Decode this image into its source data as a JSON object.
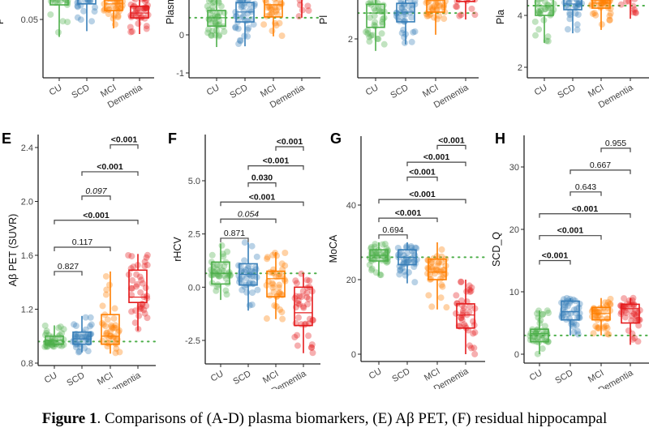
{
  "colors": {
    "CU": "#4daf4a",
    "SCD": "#377eb8",
    "MCI": "#ff7f00",
    "Dementia": "#e41a1c",
    "reference_line": "#4daf4a",
    "bracket": "#444444"
  },
  "caption": {
    "label": "Figure 1",
    "text": ". Comparisons of (A-D) plasma biomarkers, (E) Aβ PET, (F) residual hippocampal"
  },
  "chart_data": [
    {
      "type": "box",
      "panel_letter": "",
      "ylabel": "P",
      "categories": [
        "CU",
        "SCD",
        "MCI",
        "Dementia"
      ],
      "yticks": [
        "0.05"
      ],
      "ytick_values": [
        0.05
      ],
      "reference": null,
      "boxes": [
        {
          "group": "CU",
          "lo": 0.041,
          "q1": 0.0575,
          "median": 0.061,
          "q3": 0.065,
          "hi": 0.07
        },
        {
          "group": "SCD",
          "lo": 0.044,
          "q1": 0.058,
          "median": 0.062,
          "q3": 0.066,
          "hi": 0.07
        },
        {
          "group": "MCI",
          "lo": 0.0454,
          "q1": 0.0546,
          "median": 0.058,
          "q3": 0.06,
          "hi": 0.066
        },
        {
          "group": "Dementia",
          "lo": 0.0425,
          "q1": 0.0508,
          "median": 0.0533,
          "q3": 0.0567,
          "hi": 0.062
        }
      ],
      "comparisons": []
    },
    {
      "type": "box",
      "panel_letter": "",
      "ylabel": "Plasm",
      "categories": [
        "CU",
        "SCD",
        "MCI",
        "Dementia"
      ],
      "yticks": [
        "-1",
        "0"
      ],
      "ytick_values": [
        -1,
        0
      ],
      "reference": 0.45,
      "boxes": [
        {
          "group": "CU",
          "lo": -0.32,
          "q1": 0.23,
          "median": 0.45,
          "q3": 0.64,
          "hi": 1.0
        },
        {
          "group": "SCD",
          "lo": -0.3,
          "q1": 0.34,
          "median": 0.6,
          "q3": 0.85,
          "hi": 1.2
        },
        {
          "group": "MCI",
          "lo": -0.04,
          "q1": 0.47,
          "median": 0.79,
          "q3": 1.1,
          "hi": 1.5
        },
        {
          "group": "Dementia",
          "lo": 0.45,
          "q1": 1.0,
          "median": 1.3,
          "q3": 1.6,
          "hi": 2.0
        }
      ],
      "comparisons": []
    },
    {
      "type": "box",
      "panel_letter": "",
      "ylabel": "Pl",
      "categories": [
        "CU",
        "SCD",
        "MCI",
        "Dementia"
      ],
      "yticks": [
        "2"
      ],
      "ytick_values": [
        2
      ],
      "reference": 2.56,
      "boxes": [
        {
          "group": "CU",
          "lo": 1.74,
          "q1": 2.25,
          "median": 2.56,
          "q3": 2.75,
          "hi": 3.1
        },
        {
          "group": "SCD",
          "lo": 1.88,
          "q1": 2.37,
          "median": 2.58,
          "q3": 2.77,
          "hi": 3.1
        },
        {
          "group": "MCI",
          "lo": 2.09,
          "q1": 2.58,
          "median": 2.83,
          "q3": 2.9,
          "hi": 3.2
        },
        {
          "group": "Dementia",
          "lo": 2.42,
          "q1": 2.81,
          "median": 3.0,
          "q3": 3.2,
          "hi": 3.4
        }
      ],
      "comparisons": []
    },
    {
      "type": "box",
      "panel_letter": "",
      "ylabel": "Pla",
      "categories": [
        "CU",
        "SCD",
        "MCI",
        "Dementia"
      ],
      "yticks": [
        "2",
        "4"
      ],
      "ytick_values": [
        2,
        4
      ],
      "reference": 4.375,
      "boxes": [
        {
          "group": "CU",
          "lo": 2.94,
          "q1": 4.0,
          "median": 4.37,
          "q3": 4.7,
          "hi": 5.0
        },
        {
          "group": "SCD",
          "lo": 3.31,
          "q1": 4.22,
          "median": 4.44,
          "q3": 4.7,
          "hi": 5.0
        },
        {
          "group": "MCI",
          "lo": 3.44,
          "q1": 4.28,
          "median": 4.47,
          "q3": 4.6,
          "hi": 5.0
        },
        {
          "group": "Dementia",
          "lo": 3.87,
          "q1": 4.7,
          "median": 4.9,
          "q3": 5.1,
          "hi": 5.3
        }
      ],
      "comparisons": []
    },
    {
      "type": "box",
      "panel_letter": "E",
      "ylabel": "Aβ PET (SUVR)",
      "categories": [
        "CU",
        "SCD",
        "MCI",
        "Dementia"
      ],
      "yticks": [
        "0.8",
        "1.2",
        "1.6",
        "2.0",
        "2.4"
      ],
      "ytick_values": [
        0.8,
        1.2,
        1.6,
        2.0,
        2.4
      ],
      "ylim": [
        0.78,
        2.5
      ],
      "reference": 0.96,
      "boxes": [
        {
          "group": "CU",
          "lo": 0.92,
          "q1": 0.94,
          "median": 0.97,
          "q3": 1.0,
          "hi": 1.08
        },
        {
          "group": "SCD",
          "lo": 0.88,
          "q1": 0.94,
          "median": 0.98,
          "q3": 1.03,
          "hi": 1.15
        },
        {
          "group": "MCI",
          "lo": 0.87,
          "q1": 0.94,
          "median": 1.0,
          "q3": 1.16,
          "hi": 1.48
        },
        {
          "group": "Dementia",
          "lo": 1.04,
          "q1": 1.25,
          "median": 1.29,
          "q3": 1.49,
          "hi": 1.61
        }
      ],
      "comparisons": [
        {
          "from": "MCI",
          "to": "Dementia",
          "label": "<0.001",
          "style": "bold",
          "y": 2.42
        },
        {
          "from": "SCD",
          "to": "Dementia",
          "label": "<0.001",
          "style": "bold",
          "y": 2.22
        },
        {
          "from": "SCD",
          "to": "MCI",
          "label": "0.097",
          "style": "italic",
          "y": 2.04
        },
        {
          "from": "CU",
          "to": "Dementia",
          "label": "<0.001",
          "style": "bold",
          "y": 1.86
        },
        {
          "from": "CU",
          "to": "MCI",
          "label": "0.117",
          "style": "normal",
          "y": 1.66
        },
        {
          "from": "CU",
          "to": "SCD",
          "label": "0.827",
          "style": "normal",
          "y": 1.48
        }
      ]
    },
    {
      "type": "box",
      "panel_letter": "F",
      "ylabel": "rHCV",
      "categories": [
        "CU",
        "SCD",
        "MCI",
        "Dementia"
      ],
      "yticks": [
        "-2.5",
        "0.0",
        "2.5",
        "5.0"
      ],
      "ytick_values": [
        -2.5,
        0,
        2.5,
        5
      ],
      "ylim": [
        -3.6,
        7.2
      ],
      "reference": 0.65,
      "boxes": [
        {
          "group": "CU",
          "lo": -0.6,
          "q1": 0.15,
          "median": 0.65,
          "q3": 1.18,
          "hi": 2.05
        },
        {
          "group": "SCD",
          "lo": -1.1,
          "q1": 0.1,
          "median": 0.6,
          "q3": 1.1,
          "hi": 2.1
        },
        {
          "group": "MCI",
          "lo": -1.5,
          "q1": -0.45,
          "median": 0.4,
          "q3": 0.75,
          "hi": 1.65
        },
        {
          "group": "Dementia",
          "lo": -3.1,
          "q1": -1.8,
          "median": -1.2,
          "q3": 0.0,
          "hi": 0.65
        }
      ],
      "comparisons": [
        {
          "from": "MCI",
          "to": "Dementia",
          "label": "<0.001",
          "style": "bold",
          "y": 6.6
        },
        {
          "from": "SCD",
          "to": "Dementia",
          "label": "<0.001",
          "style": "bold",
          "y": 5.7
        },
        {
          "from": "SCD",
          "to": "MCI",
          "label": "0.030",
          "style": "bold",
          "y": 4.9
        },
        {
          "from": "CU",
          "to": "Dementia",
          "label": "<0.001",
          "style": "bold",
          "y": 4.0
        },
        {
          "from": "CU",
          "to": "MCI",
          "label": "0.054",
          "style": "italic",
          "y": 3.2
        },
        {
          "from": "CU",
          "to": "SCD",
          "label": "0.871",
          "style": "normal",
          "y": 2.3
        }
      ]
    },
    {
      "type": "box",
      "panel_letter": "G",
      "ylabel": "MoCA",
      "categories": [
        "CU",
        "SCD",
        "MCI",
        "Dementia"
      ],
      "yticks": [
        "0",
        "20",
        "40"
      ],
      "ytick_values": [
        0,
        20,
        40
      ],
      "ylim": [
        -2,
        58
      ],
      "reference": 26,
      "boxes": [
        {
          "group": "CU",
          "lo": 21,
          "q1": 25,
          "median": 26.5,
          "q3": 28,
          "hi": 30
        },
        {
          "group": "SCD",
          "lo": 19,
          "q1": 24,
          "median": 26,
          "q3": 28,
          "hi": 30
        },
        {
          "group": "MCI",
          "lo": 12,
          "q1": 20,
          "median": 22,
          "q3": 25.5,
          "hi": 30
        },
        {
          "group": "Dementia",
          "lo": 0,
          "q1": 7,
          "median": 10.5,
          "q3": 13.5,
          "hi": 20
        }
      ],
      "comparisons": [
        {
          "from": "MCI",
          "to": "Dementia",
          "label": "<0.001",
          "style": "bold",
          "y": 56
        },
        {
          "from": "SCD",
          "to": "Dementia",
          "label": "<0.001",
          "style": "bold",
          "y": 51.5
        },
        {
          "from": "SCD",
          "to": "MCI",
          "label": "<0.001",
          "style": "bold",
          "y": 47.5
        },
        {
          "from": "CU",
          "to": "Dementia",
          "label": "<0.001",
          "style": "bold",
          "y": 41.5
        },
        {
          "from": "CU",
          "to": "MCI",
          "label": "<0.001",
          "style": "bold",
          "y": 36.5
        },
        {
          "from": "CU",
          "to": "SCD",
          "label": "0.694",
          "style": "normal",
          "y": 32
        }
      ]
    },
    {
      "type": "box",
      "panel_letter": "H",
      "ylabel": "SCD_Q",
      "categories": [
        "CU",
        "SCD",
        "MCI",
        "Dementia"
      ],
      "yticks": [
        "0",
        "10",
        "20",
        "30"
      ],
      "ytick_values": [
        0,
        10,
        20,
        30
      ],
      "ylim": [
        -1.5,
        35
      ],
      "reference": 3,
      "boxes": [
        {
          "group": "CU",
          "lo": 0,
          "q1": 2,
          "median": 3.3,
          "q3": 4,
          "hi": 7
        },
        {
          "group": "SCD",
          "lo": 3,
          "q1": 5.5,
          "median": 6.8,
          "q3": 8.5,
          "hi": 9
        },
        {
          "group": "MCI",
          "lo": 3,
          "q1": 5.5,
          "median": 6.5,
          "q3": 7.5,
          "hi": 9
        },
        {
          "group": "Dementia",
          "lo": 1.5,
          "q1": 5,
          "median": 7.3,
          "q3": 8,
          "hi": 9
        }
      ],
      "comparisons": [
        {
          "from": "MCI",
          "to": "Dementia",
          "label": "0.955",
          "style": "normal",
          "y": 33
        },
        {
          "from": "SCD",
          "to": "Dementia",
          "label": "0.667",
          "style": "normal",
          "y": 29.5
        },
        {
          "from": "SCD",
          "to": "MCI",
          "label": "0.643",
          "style": "normal",
          "y": 26
        },
        {
          "from": "CU",
          "to": "Dementia",
          "label": "<0.001",
          "style": "bold",
          "y": 22.5
        },
        {
          "from": "CU",
          "to": "MCI",
          "label": "<0.001",
          "style": "bold",
          "y": 19
        },
        {
          "from": "CU",
          "to": "SCD",
          "label": "<0.001",
          "style": "bold",
          "y": 15
        }
      ]
    }
  ]
}
